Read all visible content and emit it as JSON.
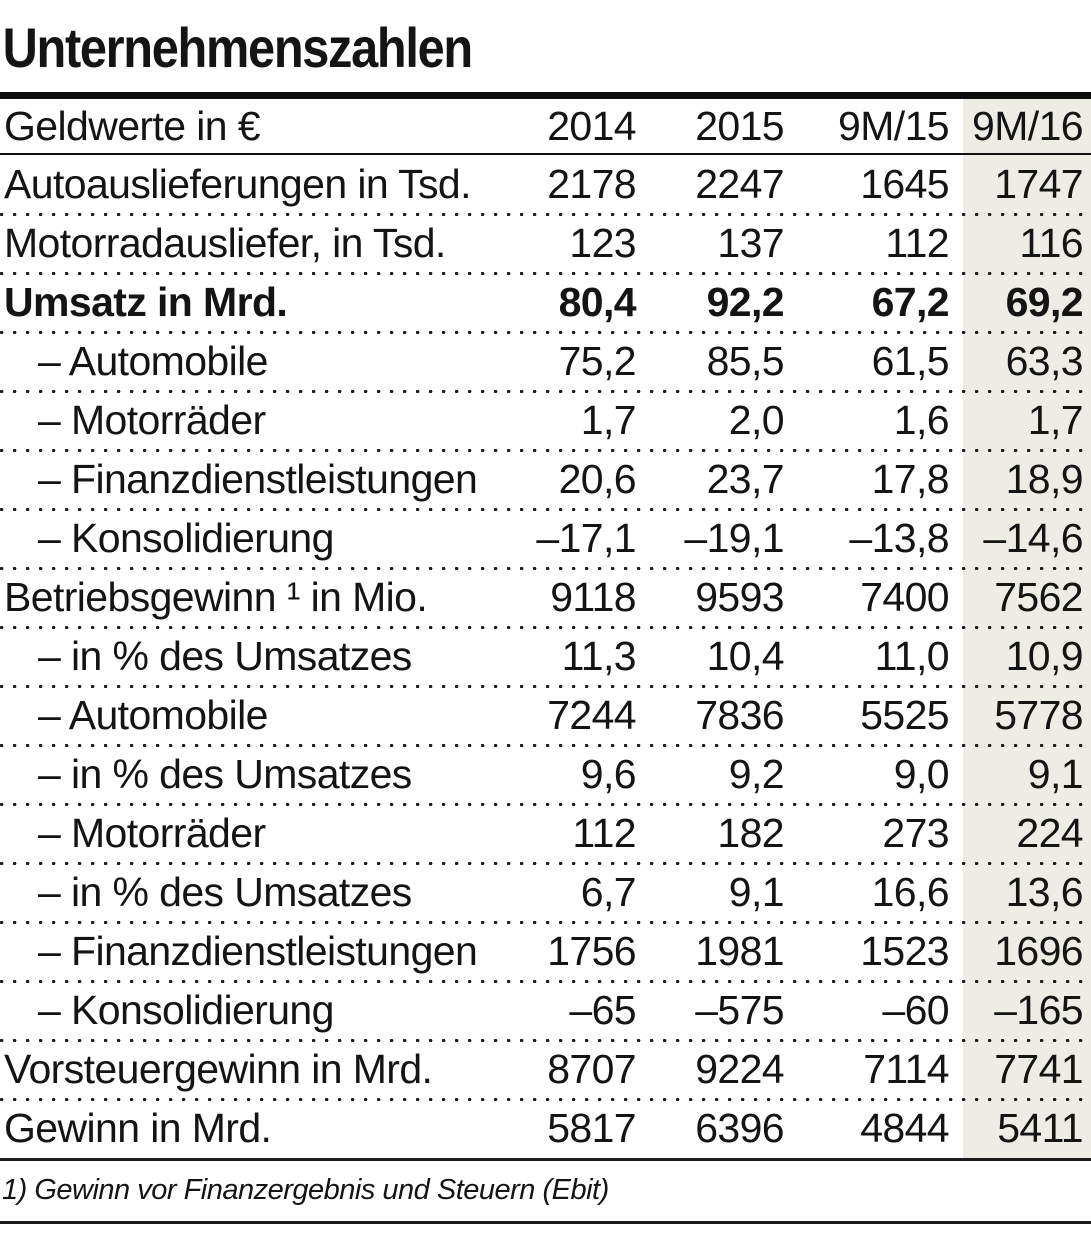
{
  "chart_data": {
    "type": "table",
    "title": "Unternehmenszahlen",
    "header": {
      "label": "Geldwerte in €",
      "columns": [
        "2014",
        "2015",
        "9M/15",
        "9M/16"
      ]
    },
    "rows": [
      {
        "label": "Autoauslieferungen in Tsd.",
        "bold": false,
        "indent": false,
        "values": [
          "2178",
          "2247",
          "1645",
          "1747"
        ]
      },
      {
        "label": "Motorradausliefer, in Tsd.",
        "bold": false,
        "indent": false,
        "values": [
          "123",
          "137",
          "112",
          "116"
        ]
      },
      {
        "label": "Umsatz in Mrd.",
        "bold": true,
        "indent": false,
        "values": [
          "80,4",
          "92,2",
          "67,2",
          "69,2"
        ]
      },
      {
        "label": "– Automobile",
        "bold": false,
        "indent": true,
        "values": [
          "75,2",
          "85,5",
          "61,5",
          "63,3"
        ]
      },
      {
        "label": "– Motorräder",
        "bold": false,
        "indent": true,
        "values": [
          "1,7",
          "2,0",
          "1,6",
          "1,7"
        ]
      },
      {
        "label": "– Finanzdienstleistungen",
        "bold": false,
        "indent": true,
        "values": [
          "20,6",
          "23,7",
          "17,8",
          "18,9"
        ]
      },
      {
        "label": "– Konsolidierung",
        "bold": false,
        "indent": true,
        "values": [
          "–17,1",
          "–19,1",
          "–13,8",
          "–14,6"
        ]
      },
      {
        "label": "Betriebsgewinn ¹ in Mio.",
        "bold": false,
        "indent": false,
        "values": [
          "9118",
          "9593",
          "7400",
          "7562"
        ]
      },
      {
        "label": "– in % des Umsatzes",
        "bold": false,
        "indent": true,
        "values": [
          "11,3",
          "10,4",
          "11,0",
          "10,9"
        ]
      },
      {
        "label": "– Automobile",
        "bold": false,
        "indent": true,
        "values": [
          "7244",
          "7836",
          "5525",
          "5778"
        ]
      },
      {
        "label": "– in % des Umsatzes",
        "bold": false,
        "indent": true,
        "values": [
          "9,6",
          "9,2",
          "9,0",
          "9,1"
        ]
      },
      {
        "label": "– Motorräder",
        "bold": false,
        "indent": true,
        "values": [
          "112",
          "182",
          "273",
          "224"
        ]
      },
      {
        "label": "– in % des Umsatzes",
        "bold": false,
        "indent": true,
        "values": [
          "6,7",
          "9,1",
          "16,6",
          "13,6"
        ]
      },
      {
        "label": "– Finanzdienstleistungen",
        "bold": false,
        "indent": true,
        "values": [
          "1756",
          "1981",
          "1523",
          "1696"
        ]
      },
      {
        "label": "– Konsolidierung",
        "bold": false,
        "indent": true,
        "values": [
          "–65",
          "–575",
          "–60",
          "–165"
        ]
      },
      {
        "label": "Vorsteuergewinn in Mrd.",
        "bold": false,
        "indent": false,
        "values": [
          "8707",
          "9224",
          "7114",
          "7741"
        ]
      },
      {
        "label": "Gewinn in Mrd.",
        "bold": false,
        "indent": false,
        "values": [
          "5817",
          "6396",
          "4844",
          "5411"
        ]
      }
    ],
    "footnote": "1) Gewinn vor Finanzergebnis und Steuern (Ebit)",
    "highlight_column": "9M/16",
    "highlight_color": "#eeede5",
    "layout": {
      "row_separators": "dotted",
      "value_alignment": "right",
      "legend_position": "none"
    }
  }
}
